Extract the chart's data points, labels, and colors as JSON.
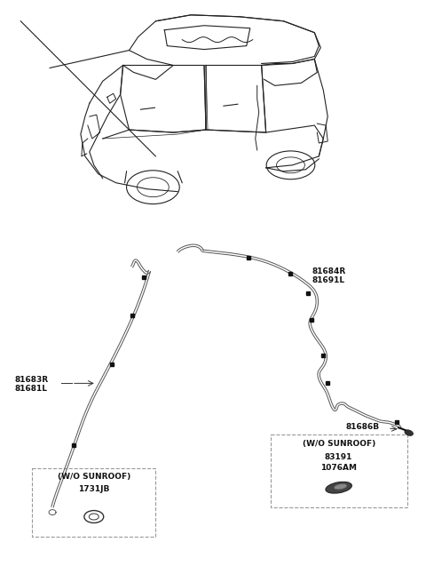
{
  "bg_color": "#ffffff",
  "label_81684R": "81684R",
  "label_81691L": "81691L",
  "label_81683R": "81683R",
  "label_81681L": "81681L",
  "label_81686B": "81686B",
  "label_wo_sunroof_left_header": "(W/O SUNROOF)",
  "label_wo_sunroof_left_part": "1731JB",
  "label_wo_sunroof_right_header": "(W/O SUNROOF)",
  "label_wo_sunroof_right_part1": "83191",
  "label_wo_sunroof_right_part2": "1076AM",
  "line_color": "#555555",
  "car_color": "#222222",
  "dot_color": "#111111",
  "box_edge_color": "#999999",
  "text_color": "#111111",
  "font_size_label": 6.5,
  "font_size_box": 6.5,
  "cable_lw": 1.0,
  "car_lw": 0.8
}
